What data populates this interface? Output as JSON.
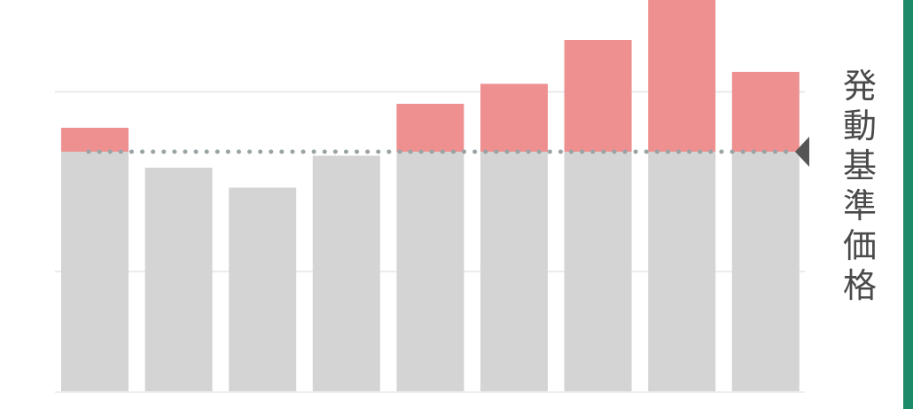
{
  "chart_data": {
    "type": "bar",
    "title": "",
    "xlabel": "",
    "ylabel": "",
    "grid": true,
    "ylim": [
      0,
      100
    ],
    "threshold": {
      "value": 60,
      "label": "発動基準価格",
      "style": "dotted"
    },
    "categories": [
      "",
      "",
      "",
      "",
      "",
      "",
      "",
      "",
      ""
    ],
    "values": [
      66,
      56,
      51,
      59,
      72,
      77,
      88,
      98,
      80
    ],
    "colors": {
      "below_threshold": "#d4d4d4",
      "above_threshold": "#ee9090",
      "threshold_line": "#9aa3a6",
      "marker": "#555555",
      "gridline": "#e3e5e8",
      "axis": "#eeeeee",
      "accent": "#1a8a6a"
    }
  }
}
